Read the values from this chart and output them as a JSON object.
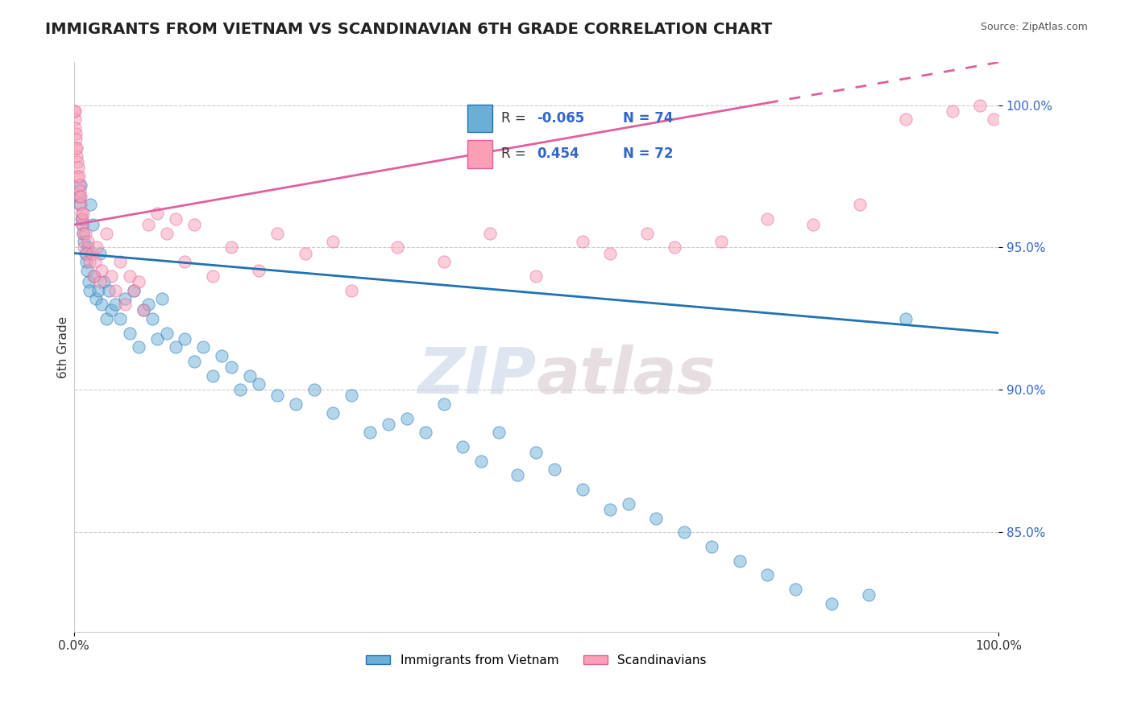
{
  "title": "IMMIGRANTS FROM VIETNAM VS SCANDINAVIAN 6TH GRADE CORRELATION CHART",
  "source": "Source: ZipAtlas.com",
  "ylabel": "6th Grade",
  "legend_label1": "Immigrants from Vietnam",
  "legend_label2": "Scandinavians",
  "r1": "-0.065",
  "n1": "74",
  "r2": "0.454",
  "n2": "72",
  "xlim": [
    0.0,
    100.0
  ],
  "ylim": [
    81.5,
    101.5
  ],
  "yticks": [
    85.0,
    90.0,
    95.0,
    100.0
  ],
  "ytick_labels": [
    "85.0%",
    "90.0%",
    "95.0%",
    "100.0%"
  ],
  "xtick_labels": [
    "0.0%",
    "100.0%"
  ],
  "color_blue": "#6baed6",
  "color_pink": "#fa9fb5",
  "color_blue_line": "#2171b5",
  "color_pink_line": "#e05fa0",
  "watermark_zip": "ZIP",
  "watermark_atlas": "atlas",
  "background_color": "#ffffff",
  "scatter_blue": [
    [
      0.5,
      96.8
    ],
    [
      0.6,
      96.5
    ],
    [
      0.7,
      97.2
    ],
    [
      0.8,
      96.0
    ],
    [
      0.9,
      95.8
    ],
    [
      1.0,
      95.5
    ],
    [
      1.1,
      95.2
    ],
    [
      1.2,
      94.8
    ],
    [
      1.3,
      94.5
    ],
    [
      1.4,
      94.2
    ],
    [
      1.5,
      95.0
    ],
    [
      1.6,
      93.8
    ],
    [
      1.7,
      93.5
    ],
    [
      1.8,
      96.5
    ],
    [
      2.0,
      95.8
    ],
    [
      2.2,
      94.0
    ],
    [
      2.4,
      93.2
    ],
    [
      2.6,
      93.5
    ],
    [
      2.8,
      94.8
    ],
    [
      3.0,
      93.0
    ],
    [
      3.2,
      93.8
    ],
    [
      3.5,
      92.5
    ],
    [
      3.8,
      93.5
    ],
    [
      4.0,
      92.8
    ],
    [
      4.5,
      93.0
    ],
    [
      5.0,
      92.5
    ],
    [
      5.5,
      93.2
    ],
    [
      6.0,
      92.0
    ],
    [
      6.5,
      93.5
    ],
    [
      7.0,
      91.5
    ],
    [
      7.5,
      92.8
    ],
    [
      8.0,
      93.0
    ],
    [
      8.5,
      92.5
    ],
    [
      9.0,
      91.8
    ],
    [
      9.5,
      93.2
    ],
    [
      10.0,
      92.0
    ],
    [
      11.0,
      91.5
    ],
    [
      12.0,
      91.8
    ],
    [
      13.0,
      91.0
    ],
    [
      14.0,
      91.5
    ],
    [
      15.0,
      90.5
    ],
    [
      16.0,
      91.2
    ],
    [
      17.0,
      90.8
    ],
    [
      18.0,
      90.0
    ],
    [
      19.0,
      90.5
    ],
    [
      20.0,
      90.2
    ],
    [
      22.0,
      89.8
    ],
    [
      24.0,
      89.5
    ],
    [
      26.0,
      90.0
    ],
    [
      28.0,
      89.2
    ],
    [
      30.0,
      89.8
    ],
    [
      32.0,
      88.5
    ],
    [
      34.0,
      88.8
    ],
    [
      36.0,
      89.0
    ],
    [
      38.0,
      88.5
    ],
    [
      40.0,
      89.5
    ],
    [
      42.0,
      88.0
    ],
    [
      44.0,
      87.5
    ],
    [
      46.0,
      88.5
    ],
    [
      48.0,
      87.0
    ],
    [
      50.0,
      87.8
    ],
    [
      52.0,
      87.2
    ],
    [
      55.0,
      86.5
    ],
    [
      58.0,
      85.8
    ],
    [
      60.0,
      86.0
    ],
    [
      63.0,
      85.5
    ],
    [
      66.0,
      85.0
    ],
    [
      69.0,
      84.5
    ],
    [
      72.0,
      84.0
    ],
    [
      75.0,
      83.5
    ],
    [
      78.0,
      83.0
    ],
    [
      82.0,
      82.5
    ],
    [
      86.0,
      82.8
    ],
    [
      90.0,
      92.5
    ]
  ],
  "scatter_pink": [
    [
      0.05,
      99.8
    ],
    [
      0.08,
      99.5
    ],
    [
      0.1,
      99.2
    ],
    [
      0.12,
      99.8
    ],
    [
      0.15,
      99.0
    ],
    [
      0.18,
      98.8
    ],
    [
      0.2,
      98.5
    ],
    [
      0.25,
      98.2
    ],
    [
      0.3,
      98.5
    ],
    [
      0.35,
      97.5
    ],
    [
      0.4,
      98.0
    ],
    [
      0.45,
      97.8
    ],
    [
      0.5,
      97.2
    ],
    [
      0.55,
      97.5
    ],
    [
      0.6,
      96.8
    ],
    [
      0.65,
      97.0
    ],
    [
      0.7,
      96.5
    ],
    [
      0.75,
      96.8
    ],
    [
      0.8,
      96.2
    ],
    [
      0.85,
      95.8
    ],
    [
      0.9,
      96.0
    ],
    [
      0.95,
      95.5
    ],
    [
      1.0,
      96.2
    ],
    [
      1.1,
      95.0
    ],
    [
      1.2,
      95.5
    ],
    [
      1.3,
      94.8
    ],
    [
      1.5,
      95.2
    ],
    [
      1.7,
      94.5
    ],
    [
      1.9,
      94.8
    ],
    [
      2.1,
      94.0
    ],
    [
      2.3,
      94.5
    ],
    [
      2.5,
      95.0
    ],
    [
      2.8,
      93.8
    ],
    [
      3.0,
      94.2
    ],
    [
      3.5,
      95.5
    ],
    [
      4.0,
      94.0
    ],
    [
      4.5,
      93.5
    ],
    [
      5.0,
      94.5
    ],
    [
      5.5,
      93.0
    ],
    [
      6.0,
      94.0
    ],
    [
      6.5,
      93.5
    ],
    [
      7.0,
      93.8
    ],
    [
      7.5,
      92.8
    ],
    [
      8.0,
      95.8
    ],
    [
      9.0,
      96.2
    ],
    [
      10.0,
      95.5
    ],
    [
      11.0,
      96.0
    ],
    [
      12.0,
      94.5
    ],
    [
      13.0,
      95.8
    ],
    [
      15.0,
      94.0
    ],
    [
      17.0,
      95.0
    ],
    [
      20.0,
      94.2
    ],
    [
      22.0,
      95.5
    ],
    [
      25.0,
      94.8
    ],
    [
      28.0,
      95.2
    ],
    [
      30.0,
      93.5
    ],
    [
      35.0,
      95.0
    ],
    [
      40.0,
      94.5
    ],
    [
      45.0,
      95.5
    ],
    [
      50.0,
      94.0
    ],
    [
      55.0,
      95.2
    ],
    [
      58.0,
      94.8
    ],
    [
      62.0,
      95.5
    ],
    [
      65.0,
      95.0
    ],
    [
      70.0,
      95.2
    ],
    [
      75.0,
      96.0
    ],
    [
      80.0,
      95.8
    ],
    [
      85.0,
      96.5
    ],
    [
      90.0,
      99.5
    ],
    [
      95.0,
      99.8
    ],
    [
      98.0,
      100.0
    ],
    [
      99.5,
      99.5
    ]
  ],
  "blue_trend": {
    "x_start": 0.0,
    "y_start": 94.8,
    "x_end": 100.0,
    "y_end": 92.0
  },
  "pink_trend": {
    "x_start": 0.0,
    "y_start": 95.8,
    "x_end": 100.0,
    "y_end": 101.5
  },
  "pink_solid_end_x": 75.0
}
